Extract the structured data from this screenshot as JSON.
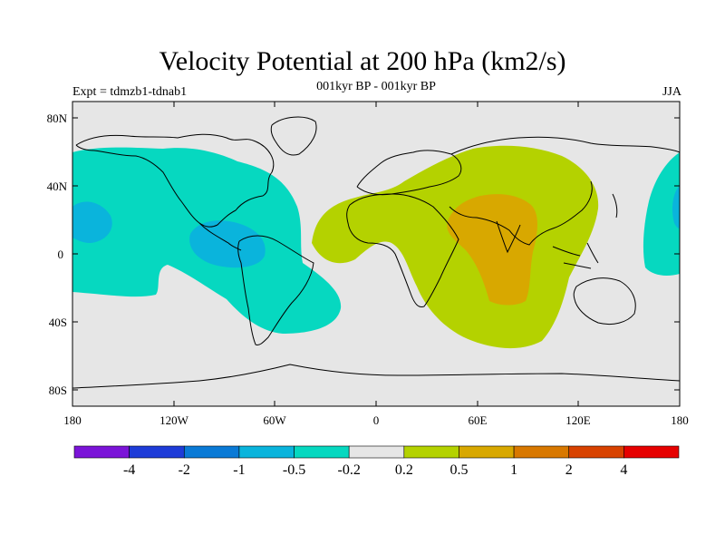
{
  "header": {
    "title": "Velocity Potential at 200 hPa (km2/s)",
    "subtitle": "001kyr BP - 001kyr BP",
    "left_label": "Expt = tdmzb1-tdnab1",
    "right_label": "JJA"
  },
  "axes": {
    "lat_ticks": [
      "80N",
      "40N",
      "0",
      "40S",
      "80S"
    ],
    "lon_ticks": [
      "180",
      "120W",
      "60W",
      "0",
      "60E",
      "120E",
      "180"
    ]
  },
  "colorbar": {
    "colors": [
      "#7b14d8",
      "#1e3cd8",
      "#0a7ad6",
      "#0ab4dc",
      "#06d8c0",
      "#e6e6e6",
      "#b4d200",
      "#d8a800",
      "#d87800",
      "#d84200",
      "#e60000"
    ],
    "labels": [
      "-4",
      "-2",
      "-1",
      "-0.5",
      "-0.2",
      "0.2",
      "0.5",
      "1",
      "2",
      "4"
    ]
  },
  "colors": {
    "ocean_background": "#e6e6e6",
    "negative_weak": "#06d8c0",
    "negative_moderate": "#0ab4dc",
    "positive_weak": "#b4d200",
    "positive_moderate": "#d8a800"
  }
}
